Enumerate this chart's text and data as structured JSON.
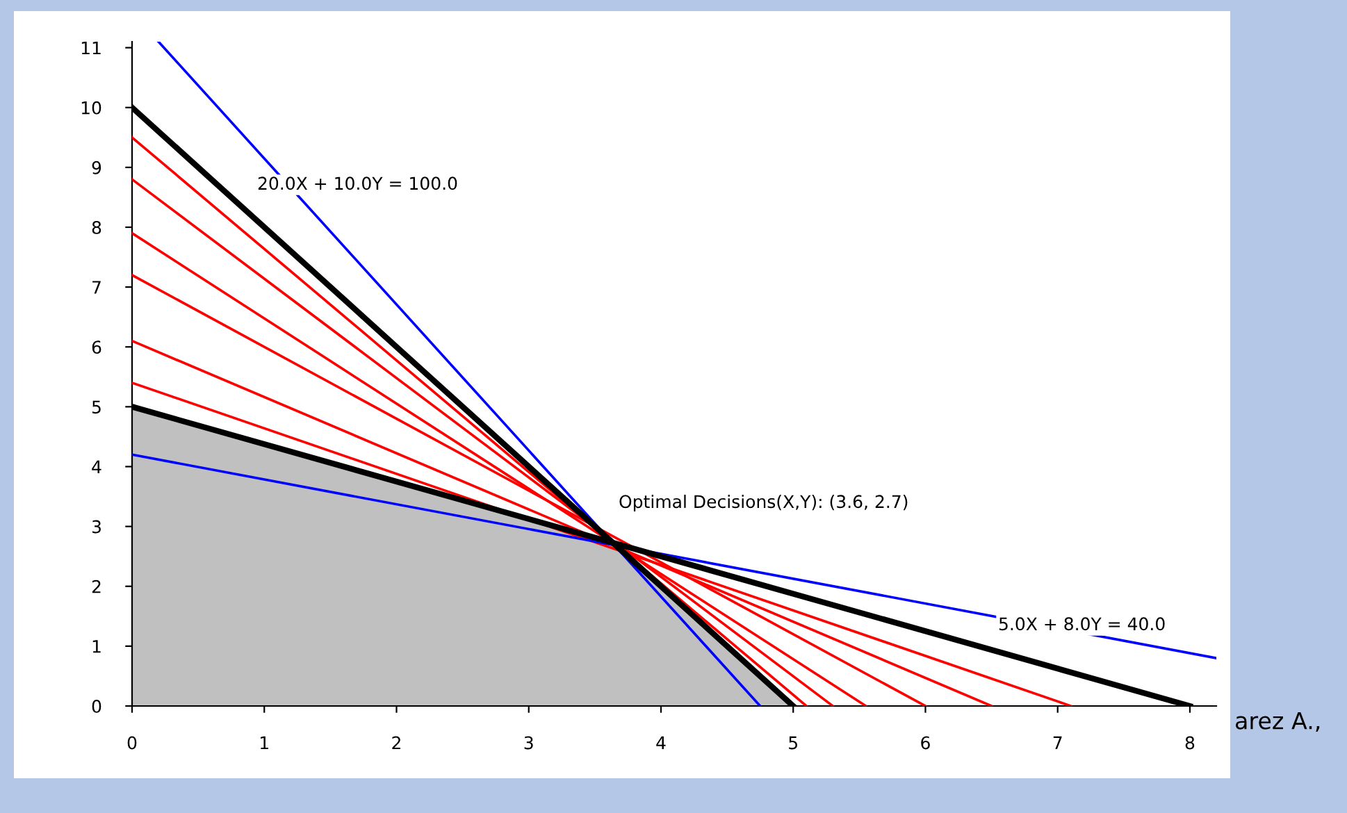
{
  "chart_data": {
    "type": "line",
    "xlim": [
      0,
      8.2
    ],
    "ylim": [
      0,
      11.1
    ],
    "xticks": [
      0,
      1,
      2,
      3,
      4,
      5,
      6,
      7,
      8
    ],
    "yticks": [
      0,
      1,
      2,
      3,
      4,
      5,
      6,
      7,
      8,
      9,
      10,
      11
    ],
    "grid": false,
    "legend": false,
    "marker": "none",
    "line_style": "solid",
    "series": [
      {
        "type": "area",
        "color": "#c0c0c0",
        "x": [
          0,
          3.64,
          5
        ],
        "values": [
          5,
          2.73,
          0
        ]
      },
      {
        "color": "#ff0000",
        "x": [
          0,
          5.1
        ],
        "values": [
          9.5,
          0
        ]
      },
      {
        "color": "#ff0000",
        "x": [
          0,
          5.3
        ],
        "values": [
          8.8,
          0
        ]
      },
      {
        "color": "#ff0000",
        "x": [
          0,
          5.55
        ],
        "values": [
          7.9,
          0
        ]
      },
      {
        "color": "#ff0000",
        "x": [
          0,
          6.0
        ],
        "values": [
          7.2,
          0
        ]
      },
      {
        "color": "#ff0000",
        "x": [
          0,
          6.5
        ],
        "values": [
          6.1,
          0
        ]
      },
      {
        "color": "#ff0000",
        "x": [
          0,
          7.1
        ],
        "values": [
          5.4,
          0
        ]
      },
      {
        "color": "#0000ff",
        "x": [
          0.2,
          4.75
        ],
        "values": [
          11.1,
          0
        ]
      },
      {
        "color": "#0000ff",
        "x": [
          0,
          8.2
        ],
        "values": [
          4.2,
          0.8
        ]
      },
      {
        "color": "#000000",
        "x": [
          0,
          5
        ],
        "values": [
          10,
          0
        ]
      },
      {
        "color": "#000000",
        "x": [
          0,
          8
        ],
        "values": [
          5,
          0
        ]
      }
    ],
    "annotations": [
      "20.0X + 10.0Y = 100.0",
      "Optimal Decisions(X,Y): (3.6, 2.7)",
      "5.0X + 8.0Y = 40.0",
      "arez A.,"
    ]
  }
}
